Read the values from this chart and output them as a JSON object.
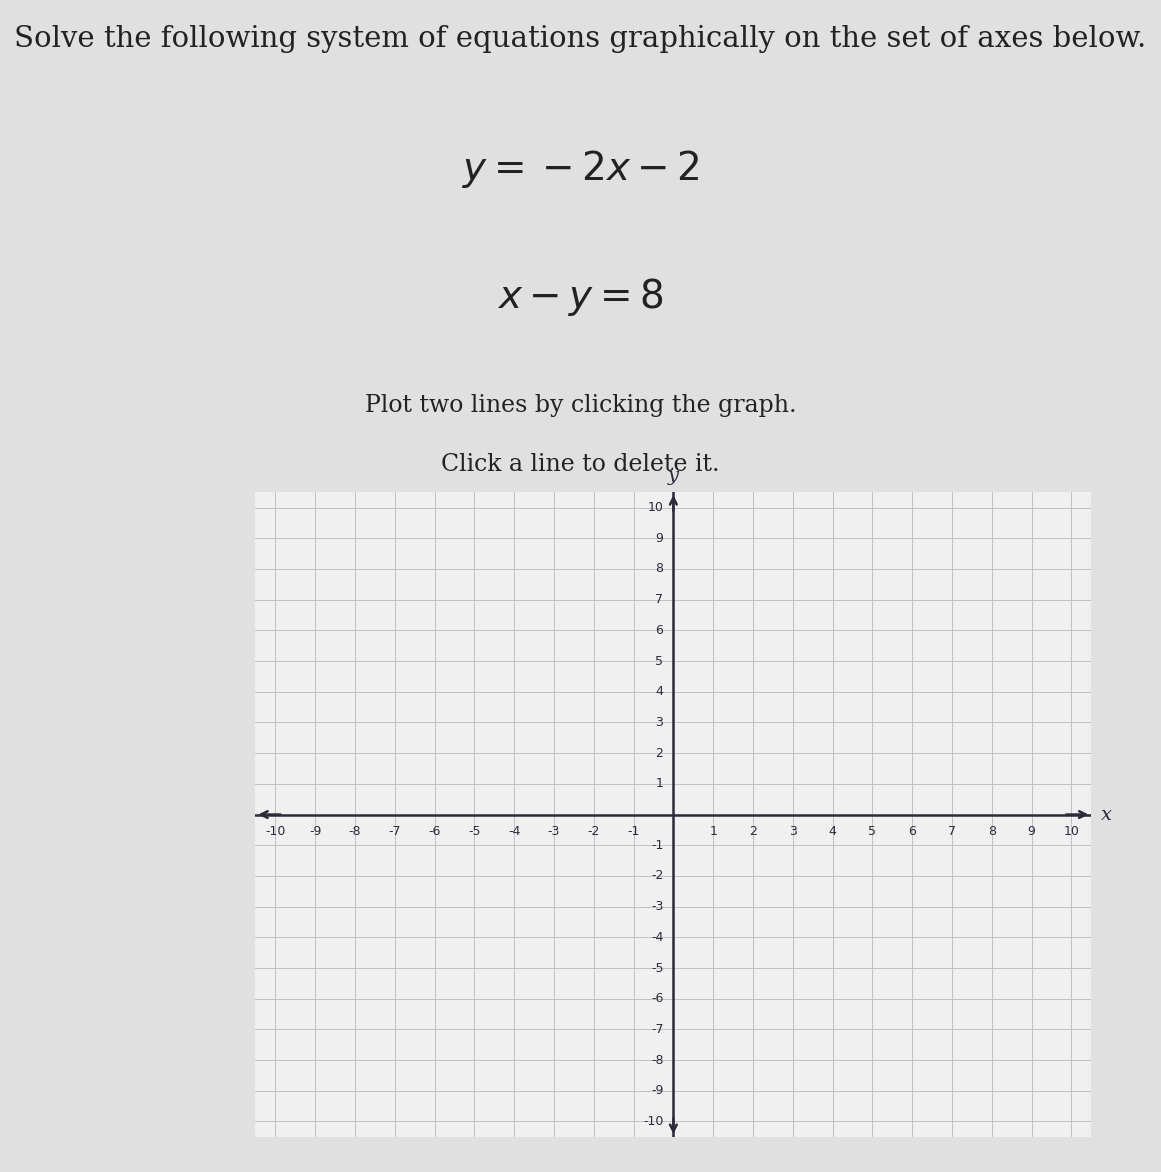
{
  "title_line1": "Solve the following system of equations graphically on the set of axes below.",
  "eq1_latex": "$y = -2x - 2$",
  "eq2_latex": "$x - y = 8$",
  "instruction1": "Plot two lines by clicking the graph.",
  "instruction2": "Click a line to delete it.",
  "xlim": [
    -10.5,
    10.5
  ],
  "ylim": [
    -10.5,
    10.5
  ],
  "bg_color": "#e0e0e0",
  "grid_color": "#c0c0c0",
  "axis_color": "#2a2a3a",
  "plot_bg": "#f0f0f0",
  "title_fontsize": 21,
  "eq_fontsize": 28,
  "instr_fontsize": 17,
  "tick_fontsize": 9,
  "axis_label_fontsize": 14
}
